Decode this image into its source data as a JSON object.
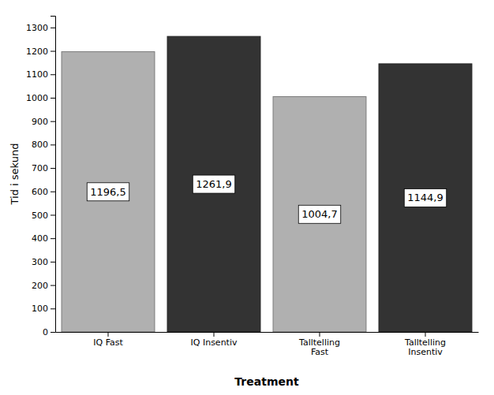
{
  "chart_data": {
    "type": "bar",
    "categories": [
      "IQ Fast",
      "IQ Insentiv",
      "Talltelling\nFast",
      "Talltelling\nInsentiv"
    ],
    "values": [
      1196.5,
      1261.9,
      1004.7,
      1144.9
    ],
    "value_labels": [
      "1196,5",
      "1261,9",
      "1004,7",
      "1144,9"
    ],
    "data_labels": true,
    "colors": [
      "#b0b0b0",
      "#333333",
      "#b0b0b0",
      "#333333"
    ],
    "xlabel": "Treatment",
    "ylabel": "Tid i sekund",
    "ylim": [
      0,
      1350
    ],
    "yticks": [
      0,
      100,
      200,
      300,
      400,
      500,
      600,
      700,
      800,
      900,
      1000,
      1100,
      1200,
      1300
    ],
    "grid": false
  }
}
